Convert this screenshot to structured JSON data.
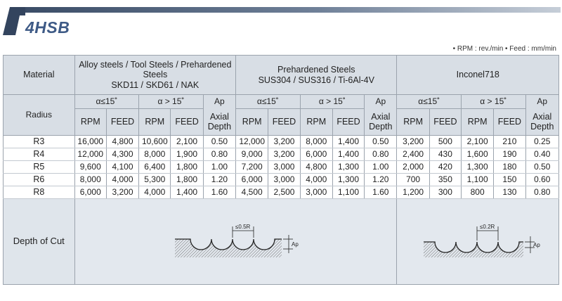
{
  "title": "4HSB",
  "units_note": "• RPM : rev./min  • Feed : mm/min",
  "table": {
    "material_label": "Material",
    "radius_label": "Radius",
    "groups": [
      {
        "name_lines": [
          "Alloy steels / Tool Steels / Prehardened",
          "Steels",
          "SKD11 / SKD61 / NAK"
        ]
      },
      {
        "name_lines": [
          "Prehardened Steels",
          "SUS304 / SUS316 / Ti-6Al-4V"
        ]
      },
      {
        "name_lines": [
          "Inconel718"
        ]
      }
    ],
    "angle_low": "α≤15˚",
    "angle_high": "α > 15˚",
    "ap_label": "Ap",
    "rpm_label": "RPM",
    "feed_label": "FEED",
    "axial_depth_label": "Axial Depth",
    "rows": [
      {
        "radius": "R3",
        "cells": [
          "16,000",
          "4,800",
          "10,600",
          "2,100",
          "0.50",
          "12,000",
          "3,200",
          "8,000",
          "1,400",
          "0.50",
          "3,200",
          "500",
          "2,100",
          "210",
          "0.25"
        ]
      },
      {
        "radius": "R4",
        "cells": [
          "12,000",
          "4,300",
          "8,000",
          "1,900",
          "0.80",
          "9,000",
          "3,200",
          "6,000",
          "1,400",
          "0.80",
          "2,400",
          "430",
          "1,600",
          "190",
          "0.40"
        ]
      },
      {
        "radius": "R5",
        "cells": [
          "9,600",
          "4,100",
          "6,400",
          "1,800",
          "1.00",
          "7,200",
          "3,000",
          "4,800",
          "1,300",
          "1.00",
          "2,000",
          "420",
          "1,300",
          "180",
          "0.50"
        ]
      },
      {
        "radius": "R6",
        "cells": [
          "8,000",
          "4,000",
          "5,300",
          "1,800",
          "1.20",
          "6,000",
          "3,000",
          "4,000",
          "1,300",
          "1.20",
          "700",
          "350",
          "1,100",
          "150",
          "0.60"
        ]
      },
      {
        "radius": "R8",
        "cells": [
          "6,000",
          "3,200",
          "4,000",
          "1,400",
          "1.60",
          "4,500",
          "2,500",
          "3,000",
          "1,100",
          "1.60",
          "1,200",
          "300",
          "800",
          "130",
          "0.80"
        ]
      }
    ],
    "depth_of_cut_label": "Depth of Cut",
    "diagram_1": {
      "pitch_label": "≤0.5R",
      "ap_label": "Ap"
    },
    "diagram_2": {
      "pitch_label": "≤0.2R",
      "ap_label": "Ap"
    }
  }
}
